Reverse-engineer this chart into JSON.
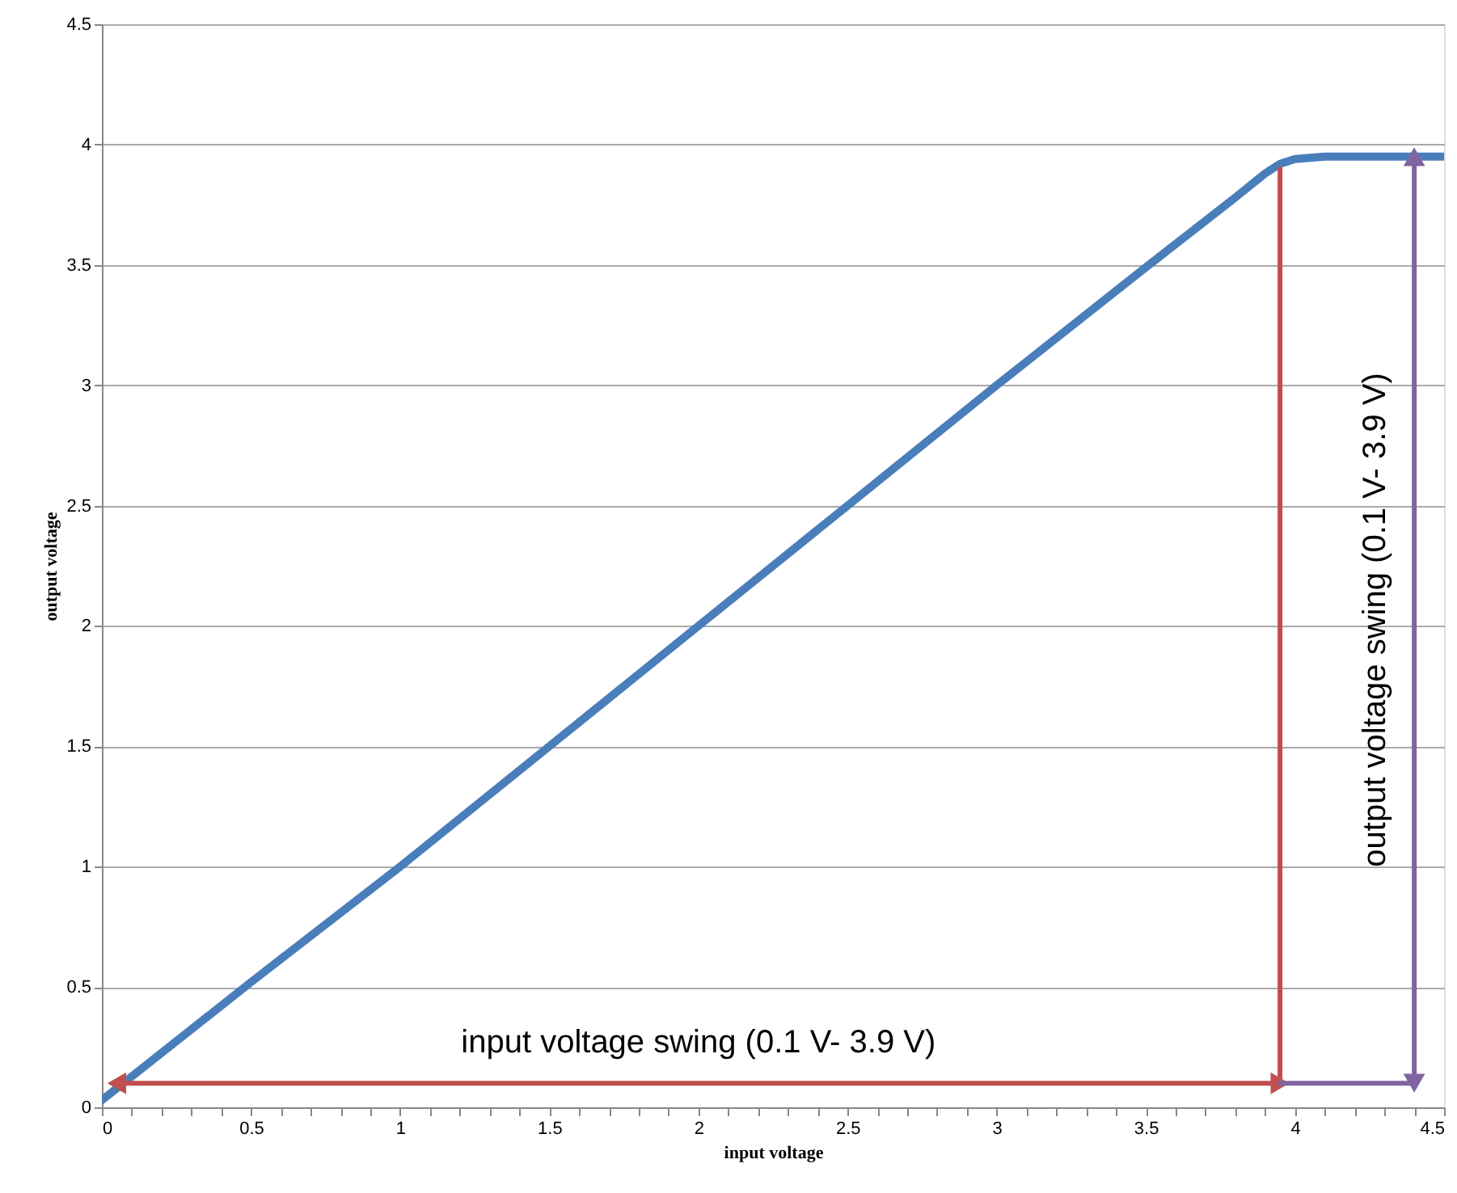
{
  "chart_data": {
    "type": "line",
    "xlabel": "input voltage",
    "ylabel": "output voltage",
    "series": [
      {
        "color": "#4a7ebb",
        "x": [
          0,
          0.5,
          1,
          1.5,
          2,
          2.5,
          3,
          3.5,
          3.8,
          3.9,
          3.95,
          4.0,
          4.1,
          4.5
        ],
        "values": [
          0.03,
          0.52,
          1.0,
          1.5,
          2.0,
          2.5,
          3.0,
          3.49,
          3.78,
          3.88,
          3.92,
          3.94,
          3.95,
          3.95
        ]
      },
      {
        "type": "line",
        "color": "#c0504d",
        "marker": "triangle",
        "x": [
          0.05,
          3.95
        ],
        "values": [
          0.1,
          0.1
        ]
      },
      {
        "type": "line",
        "color": "#c0504d",
        "x": [
          3.95,
          3.95
        ],
        "values": [
          0.1,
          3.9
        ]
      },
      {
        "type": "line",
        "color": "#8064a2",
        "x": [
          3.95,
          4.4
        ],
        "values": [
          0.1,
          0.1
        ]
      },
      {
        "type": "line",
        "color": "#8064a2",
        "marker": "triangle",
        "x": [
          4.4,
          4.4
        ],
        "values": [
          0.1,
          3.95
        ]
      }
    ],
    "xlim": [
      0,
      4.5
    ],
    "ylim": [
      0,
      4.5
    ],
    "xticks": [
      0,
      {
        "value": 0.1,
        "label": null
      },
      {
        "value": 0.2,
        "label": null
      },
      {
        "value": 0.3,
        "label": null
      },
      {
        "value": 0.4,
        "label": null
      },
      0.5,
      {
        "value": 0.6,
        "label": null
      },
      {
        "value": 0.7,
        "label": null
      },
      {
        "value": 0.8,
        "label": null
      },
      {
        "value": 0.9,
        "label": null
      },
      1,
      {
        "value": 1.1,
        "label": null
      },
      {
        "value": 1.2,
        "label": null
      },
      {
        "value": 1.3,
        "label": null
      },
      {
        "value": 1.4,
        "label": null
      },
      1.5,
      {
        "value": 1.6,
        "label": null
      },
      {
        "value": 1.7,
        "label": null
      },
      {
        "value": 1.8,
        "label": null
      },
      {
        "value": 1.9,
        "label": null
      },
      2,
      {
        "value": 2.1,
        "label": null
      },
      {
        "value": 2.2,
        "label": null
      },
      {
        "value": 2.3,
        "label": null
      },
      {
        "value": 2.4,
        "label": null
      },
      2.5,
      {
        "value": 2.6,
        "label": null
      },
      {
        "value": 2.7,
        "label": null
      },
      {
        "value": 2.8,
        "label": null
      },
      {
        "value": 2.9,
        "label": null
      },
      3,
      {
        "value": 3.1,
        "label": null
      },
      {
        "value": 3.2,
        "label": null
      },
      {
        "value": 3.3,
        "label": null
      },
      {
        "value": 3.4,
        "label": null
      },
      3.5,
      {
        "value": 3.6,
        "label": null
      },
      {
        "value": 3.7,
        "label": null
      },
      {
        "value": 3.8,
        "label": null
      },
      {
        "value": 3.9,
        "label": null
      },
      4,
      {
        "value": 4.1,
        "label": null
      },
      {
        "value": 4.2,
        "label": null
      },
      {
        "value": 4.3,
        "label": null
      },
      {
        "value": 4.4,
        "label": null
      },
      4.5
    ],
    "yticks": [
      0,
      0.5,
      1,
      1.5,
      2,
      2.5,
      3,
      3.5,
      4,
      4.5
    ],
    "grid": "y",
    "line_style": "solid",
    "annotations": [
      "input voltage swing (0.1 V- 3.9 V)",
      "output voltage swing (0.1 V- 3.9 V)"
    ]
  }
}
